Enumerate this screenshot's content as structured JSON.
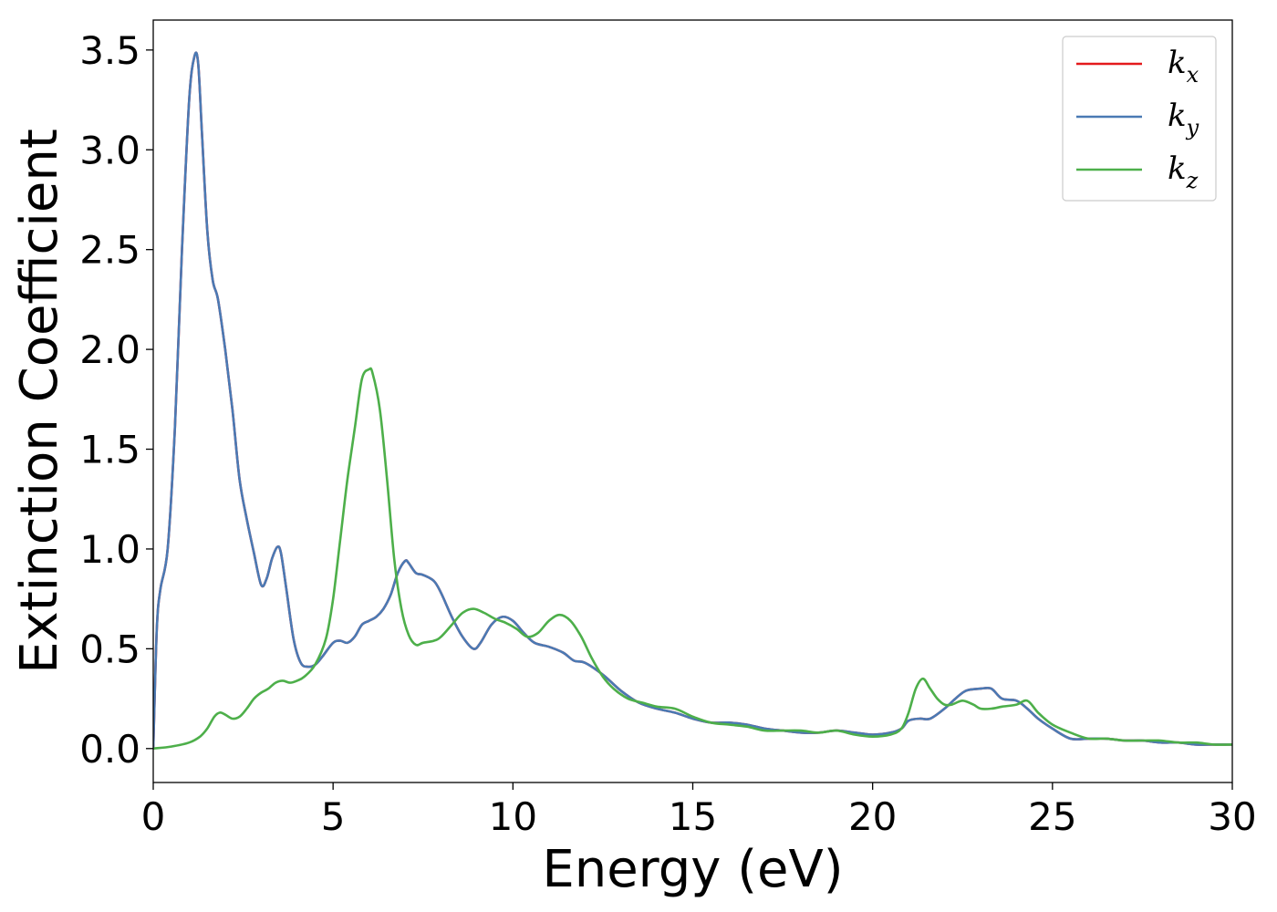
{
  "chart_data": {
    "type": "line",
    "title": "",
    "xlabel": "Energy (eV)",
    "ylabel": "Extinction Coefficient",
    "xlim": [
      0,
      30
    ],
    "ylim": [
      -0.17,
      3.65
    ],
    "x_ticks": [
      0,
      5,
      10,
      15,
      20,
      25,
      30
    ],
    "x_tick_labels": [
      "0",
      "5",
      "10",
      "15",
      "20",
      "25",
      "30"
    ],
    "y_ticks": [
      0.0,
      0.5,
      1.0,
      1.5,
      2.0,
      2.5,
      3.0,
      3.5
    ],
    "y_tick_labels": [
      "0.0",
      "0.5",
      "1.0",
      "1.5",
      "2.0",
      "2.5",
      "3.0",
      "3.5"
    ],
    "grid": false,
    "legend_position": "top-right",
    "series": [
      {
        "name": "k",
        "subscript": "x",
        "color": "#e41a1c",
        "x": [
          0,
          0.1,
          0.2,
          0.4,
          0.6,
          0.8,
          1.0,
          1.15,
          1.25,
          1.35,
          1.5,
          1.65,
          1.8,
          2.0,
          2.2,
          2.4,
          2.6,
          2.8,
          3.0,
          3.15,
          3.3,
          3.45,
          3.55,
          3.7,
          3.9,
          4.1,
          4.3,
          4.5,
          4.7,
          5.0,
          5.2,
          5.4,
          5.6,
          5.8,
          6.0,
          6.2,
          6.4,
          6.6,
          6.8,
          7.0,
          7.1,
          7.3,
          7.5,
          7.8,
          8.0,
          8.3,
          8.6,
          8.9,
          9.1,
          9.4,
          9.7,
          10.0,
          10.3,
          10.6,
          11.0,
          11.4,
          11.7,
          12.0,
          12.5,
          13.0,
          13.5,
          14.0,
          14.5,
          15.0,
          15.5,
          16.0,
          16.5,
          17.0,
          17.5,
          18.0,
          18.5,
          19.0,
          19.5,
          20.0,
          20.5,
          20.8,
          21.0,
          21.3,
          21.6,
          22.0,
          22.3,
          22.6,
          23.0,
          23.3,
          23.6,
          24.0,
          24.3,
          24.6,
          25.0,
          25.5,
          26.0,
          26.5,
          27.0,
          27.5,
          28.0,
          28.5,
          29.0,
          29.5,
          30.0
        ],
        "values": [
          0.0,
          0.6,
          0.8,
          1.0,
          1.6,
          2.5,
          3.25,
          3.47,
          3.43,
          3.1,
          2.6,
          2.35,
          2.25,
          2.0,
          1.7,
          1.35,
          1.15,
          0.98,
          0.82,
          0.85,
          0.95,
          1.01,
          0.98,
          0.8,
          0.55,
          0.43,
          0.41,
          0.42,
          0.46,
          0.53,
          0.54,
          0.53,
          0.56,
          0.62,
          0.64,
          0.66,
          0.7,
          0.77,
          0.88,
          0.94,
          0.93,
          0.88,
          0.87,
          0.84,
          0.78,
          0.66,
          0.56,
          0.5,
          0.53,
          0.62,
          0.66,
          0.64,
          0.58,
          0.53,
          0.51,
          0.48,
          0.44,
          0.43,
          0.37,
          0.29,
          0.23,
          0.2,
          0.18,
          0.15,
          0.13,
          0.13,
          0.12,
          0.1,
          0.09,
          0.08,
          0.08,
          0.09,
          0.08,
          0.07,
          0.08,
          0.1,
          0.14,
          0.15,
          0.15,
          0.2,
          0.25,
          0.29,
          0.3,
          0.3,
          0.25,
          0.24,
          0.2,
          0.15,
          0.1,
          0.05,
          0.05,
          0.05,
          0.04,
          0.04,
          0.03,
          0.03,
          0.02,
          0.02,
          0.02
        ]
      },
      {
        "name": "k",
        "subscript": "y",
        "color": "#4a7ab4",
        "x": [
          0,
          0.1,
          0.2,
          0.4,
          0.6,
          0.8,
          1.0,
          1.15,
          1.25,
          1.35,
          1.5,
          1.65,
          1.8,
          2.0,
          2.2,
          2.4,
          2.6,
          2.8,
          3.0,
          3.15,
          3.3,
          3.45,
          3.55,
          3.7,
          3.9,
          4.1,
          4.3,
          4.5,
          4.7,
          5.0,
          5.2,
          5.4,
          5.6,
          5.8,
          6.0,
          6.2,
          6.4,
          6.6,
          6.8,
          7.0,
          7.1,
          7.3,
          7.5,
          7.8,
          8.0,
          8.3,
          8.6,
          8.9,
          9.1,
          9.4,
          9.7,
          10.0,
          10.3,
          10.6,
          11.0,
          11.4,
          11.7,
          12.0,
          12.5,
          13.0,
          13.5,
          14.0,
          14.5,
          15.0,
          15.5,
          16.0,
          16.5,
          17.0,
          17.5,
          18.0,
          18.5,
          19.0,
          19.5,
          20.0,
          20.5,
          20.8,
          21.0,
          21.3,
          21.6,
          22.0,
          22.3,
          22.6,
          23.0,
          23.3,
          23.6,
          24.0,
          24.3,
          24.6,
          25.0,
          25.5,
          26.0,
          26.5,
          27.0,
          27.5,
          28.0,
          28.5,
          29.0,
          29.5,
          30.0
        ],
        "values": [
          0.0,
          0.6,
          0.8,
          1.0,
          1.6,
          2.5,
          3.25,
          3.47,
          3.43,
          3.1,
          2.6,
          2.35,
          2.25,
          2.0,
          1.7,
          1.35,
          1.15,
          0.98,
          0.82,
          0.85,
          0.95,
          1.01,
          0.98,
          0.8,
          0.55,
          0.43,
          0.41,
          0.42,
          0.46,
          0.53,
          0.54,
          0.53,
          0.56,
          0.62,
          0.64,
          0.66,
          0.7,
          0.77,
          0.88,
          0.94,
          0.93,
          0.88,
          0.87,
          0.84,
          0.78,
          0.66,
          0.56,
          0.5,
          0.53,
          0.62,
          0.66,
          0.64,
          0.58,
          0.53,
          0.51,
          0.48,
          0.44,
          0.43,
          0.37,
          0.29,
          0.23,
          0.2,
          0.18,
          0.15,
          0.13,
          0.13,
          0.12,
          0.1,
          0.09,
          0.08,
          0.08,
          0.09,
          0.08,
          0.07,
          0.08,
          0.1,
          0.14,
          0.15,
          0.15,
          0.2,
          0.25,
          0.29,
          0.3,
          0.3,
          0.25,
          0.24,
          0.2,
          0.15,
          0.1,
          0.05,
          0.05,
          0.05,
          0.04,
          0.04,
          0.03,
          0.03,
          0.02,
          0.02,
          0.02
        ]
      },
      {
        "name": "k",
        "subscript": "z",
        "color": "#4daf4a",
        "x": [
          0,
          0.5,
          1.0,
          1.3,
          1.5,
          1.7,
          1.85,
          2.0,
          2.2,
          2.4,
          2.6,
          2.8,
          3.0,
          3.2,
          3.4,
          3.6,
          3.8,
          4.0,
          4.2,
          4.5,
          4.8,
          5.0,
          5.2,
          5.4,
          5.6,
          5.8,
          6.0,
          6.1,
          6.3,
          6.5,
          6.7,
          6.9,
          7.1,
          7.3,
          7.5,
          7.8,
          8.0,
          8.3,
          8.6,
          8.9,
          9.2,
          9.5,
          9.8,
          10.1,
          10.4,
          10.7,
          11.0,
          11.3,
          11.6,
          11.9,
          12.2,
          12.5,
          12.8,
          13.2,
          13.6,
          14.0,
          14.5,
          15.0,
          15.5,
          16.0,
          16.5,
          17.0,
          17.5,
          18.0,
          18.5,
          19.0,
          19.5,
          20.0,
          20.5,
          20.8,
          21.0,
          21.2,
          21.4,
          21.6,
          21.8,
          22.0,
          22.2,
          22.5,
          22.8,
          23.0,
          23.3,
          23.6,
          24.0,
          24.3,
          24.6,
          25.0,
          25.5,
          26.0,
          26.5,
          27.0,
          27.5,
          28.0,
          28.5,
          29.0,
          29.5,
          30.0
        ],
        "values": [
          0.0,
          0.01,
          0.03,
          0.06,
          0.1,
          0.16,
          0.18,
          0.17,
          0.15,
          0.16,
          0.2,
          0.25,
          0.28,
          0.3,
          0.33,
          0.34,
          0.33,
          0.34,
          0.36,
          0.42,
          0.55,
          0.75,
          1.05,
          1.35,
          1.6,
          1.85,
          1.9,
          1.88,
          1.7,
          1.35,
          0.95,
          0.7,
          0.57,
          0.52,
          0.53,
          0.54,
          0.56,
          0.62,
          0.68,
          0.7,
          0.68,
          0.65,
          0.63,
          0.6,
          0.56,
          0.58,
          0.64,
          0.67,
          0.64,
          0.56,
          0.45,
          0.36,
          0.3,
          0.25,
          0.23,
          0.21,
          0.2,
          0.16,
          0.13,
          0.12,
          0.11,
          0.09,
          0.09,
          0.09,
          0.08,
          0.09,
          0.07,
          0.06,
          0.07,
          0.1,
          0.18,
          0.3,
          0.35,
          0.3,
          0.25,
          0.22,
          0.22,
          0.24,
          0.22,
          0.2,
          0.2,
          0.21,
          0.22,
          0.24,
          0.18,
          0.12,
          0.08,
          0.05,
          0.05,
          0.04,
          0.04,
          0.04,
          0.03,
          0.03,
          0.02,
          0.02
        ]
      }
    ]
  }
}
